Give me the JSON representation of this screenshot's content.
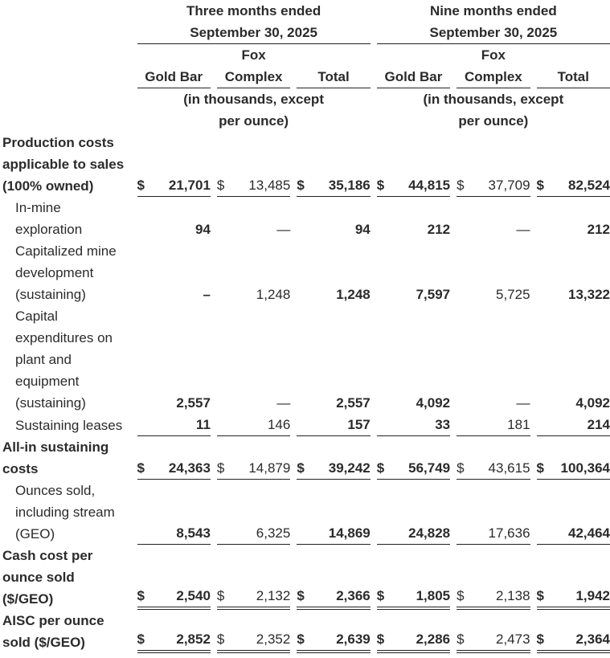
{
  "header": {
    "periods": [
      {
        "line1": "Three months ended",
        "line2": "September 30, 2025"
      },
      {
        "line1": "Nine months ended",
        "line2": "September 30, 2025"
      }
    ],
    "columns": [
      {
        "line1": "",
        "line2": "Gold Bar"
      },
      {
        "line1": "Fox",
        "line2": "Complex"
      },
      {
        "line1": "",
        "line2": "Total"
      }
    ],
    "units_line1": "(in thousands, except",
    "units_line2": "per ounce)"
  },
  "rows": [
    {
      "label": [
        "Production costs",
        "applicable to sales",
        "(100% owned)"
      ],
      "style": "bold",
      "dollar": true,
      "border": "ul",
      "values": [
        "21,701",
        "13,485",
        "35,186",
        "44,815",
        "37,709",
        "82,524"
      ]
    },
    {
      "label": [
        "In-mine",
        "exploration"
      ],
      "style": "indent",
      "dollar": false,
      "border": "",
      "values": [
        "94",
        "—",
        "94",
        "212",
        "—",
        "212"
      ]
    },
    {
      "label": [
        "Capitalized mine",
        "development",
        "(sustaining)"
      ],
      "style": "indent",
      "dollar": false,
      "border": "",
      "values": [
        "–",
        "1,248",
        "1,248",
        "7,597",
        "5,725",
        "13,322"
      ]
    },
    {
      "label": [
        "Capital",
        "expenditures on",
        "plant and",
        "equipment",
        "(sustaining)"
      ],
      "style": "indent",
      "dollar": false,
      "border": "",
      "values": [
        "2,557",
        "—",
        "2,557",
        "4,092",
        "—",
        "4,092"
      ]
    },
    {
      "label": [
        "Sustaining leases"
      ],
      "style": "indent",
      "dollar": false,
      "border": "ul",
      "values": [
        "11",
        "146",
        "157",
        "33",
        "181",
        "214"
      ]
    },
    {
      "label": [
        "All-in sustaining",
        "costs"
      ],
      "style": "bold",
      "dollar": true,
      "border": "ul",
      "values": [
        "24,363",
        "14,879",
        "39,242",
        "56,749",
        "43,615",
        "100,364"
      ]
    },
    {
      "label": [
        "Ounces sold,",
        "including stream",
        "(GEO)"
      ],
      "style": "indent0",
      "dollar": false,
      "border": "ul",
      "values": [
        "8,543",
        "6,325",
        "14,869",
        "24,828",
        "17,636",
        "42,464"
      ]
    },
    {
      "label": [
        "Cash cost per",
        "ounce sold",
        "($/GEO)"
      ],
      "style": "bold",
      "dollar": true,
      "border": "dbl",
      "values": [
        "2,540",
        "2,132",
        "2,366",
        "1,805",
        "2,138",
        "1,942"
      ]
    },
    {
      "label": [
        "AISC per ounce",
        "sold ($/GEO)"
      ],
      "style": "bold",
      "dollar": true,
      "border": "dbl",
      "values": [
        "2,852",
        "2,352",
        "2,639",
        "2,286",
        "2,473",
        "2,364"
      ]
    }
  ],
  "currency_symbol": "$"
}
